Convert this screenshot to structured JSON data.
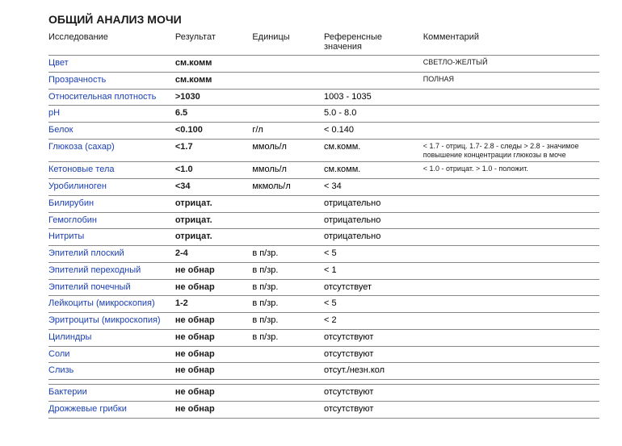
{
  "title": "ОБЩИЙ АНАЛИЗ МОЧИ",
  "headers": {
    "test": "Исследование",
    "result": "Результат",
    "units": "Единицы",
    "ref": "Референсные значения",
    "comment": "Комментарий"
  },
  "rows": [
    {
      "test": "Цвет",
      "result": "см.комм",
      "units": "",
      "ref": "",
      "comment": "СВЕТЛО-ЖЕЛТЫЙ"
    },
    {
      "test": "Прозрачность",
      "result": "см.комм",
      "units": "",
      "ref": "",
      "comment": "ПОЛНАЯ"
    },
    {
      "test": "Относительная плотность",
      "result": ">1030",
      "units": "",
      "ref": "1003 - 1035",
      "comment": ""
    },
    {
      "test": "pH",
      "result": "6.5",
      "units": "",
      "ref": "5.0 - 8.0",
      "comment": ""
    },
    {
      "test": "Белок",
      "result": "<0.100",
      "units": "г/л",
      "ref": "< 0.140",
      "comment": ""
    },
    {
      "test": "Глюкоза (сахар)",
      "result": "<1.7",
      "units": "ммоль/л",
      "ref": "см.комм.",
      "comment": "< 1.7 - отриц. 1.7- 2.8 - следы > 2.8 - значимое повышение концентрации глюкозы в моче"
    },
    {
      "test": "Кетоновые тела",
      "result": "<1.0",
      "units": "ммоль/л",
      "ref": "см.комм.",
      "comment": "< 1.0 - отрицат. > 1.0 - положит."
    },
    {
      "test": "Уробилиноген",
      "result": "<34",
      "units": "мкмоль/л",
      "ref": "< 34",
      "comment": ""
    },
    {
      "test": "Билирубин",
      "result": "отрицат.",
      "units": "",
      "ref": "отрицательно",
      "comment": ""
    },
    {
      "test": "Гемоглобин",
      "result": "отрицат.",
      "units": "",
      "ref": "отрицательно",
      "comment": ""
    },
    {
      "test": "Нитриты",
      "result": "отрицат.",
      "units": "",
      "ref": "отрицательно",
      "comment": ""
    },
    {
      "test": "Эпителий плоский",
      "result": "2-4",
      "units": "в п/зр.",
      "ref": "< 5",
      "comment": ""
    },
    {
      "test": "Эпителий переходный",
      "result": "не обнар",
      "units": "в п/зр.",
      "ref": "< 1",
      "comment": ""
    },
    {
      "test": "Эпителий почечный",
      "result": "не обнар",
      "units": "в п/зр.",
      "ref": "отсутствует",
      "comment": ""
    },
    {
      "test": "Лейкоциты (микроскопия)",
      "result": "1-2",
      "units": "в п/зр.",
      "ref": "< 5",
      "comment": ""
    },
    {
      "test": "Эритроциты (микроскопия)",
      "result": "не обнар",
      "units": "в п/зр.",
      "ref": "< 2",
      "comment": ""
    },
    {
      "test": "Цилиндры",
      "result": "не обнар",
      "units": "в п/зр.",
      "ref": "отсутствуют",
      "comment": ""
    },
    {
      "test": "Соли",
      "result": "не обнар",
      "units": "",
      "ref": "отсутствуют",
      "comment": ""
    },
    {
      "test": "Слизь",
      "result": "не обнар",
      "units": "",
      "ref": "отсут./незн.кол",
      "comment": ""
    },
    {
      "gap": true
    },
    {
      "test": "Бактерии",
      "result": "не обнар",
      "units": "",
      "ref": "отсутствуют",
      "comment": ""
    },
    {
      "test": "Дрожжевые грибки",
      "result": "не обнар",
      "units": "",
      "ref": "отсутствуют",
      "comment": ""
    }
  ],
  "style": {
    "title_fontsize": 14,
    "body_fontsize": 11,
    "comment_fontsize": 9,
    "test_color": "#1a3fb3",
    "text_color": "#1a1a1a",
    "border_color": "#888888",
    "background": "#ffffff",
    "col_widths_pct": {
      "test": 23,
      "result": 14,
      "units": 13,
      "ref": 18,
      "comment": 32
    }
  }
}
